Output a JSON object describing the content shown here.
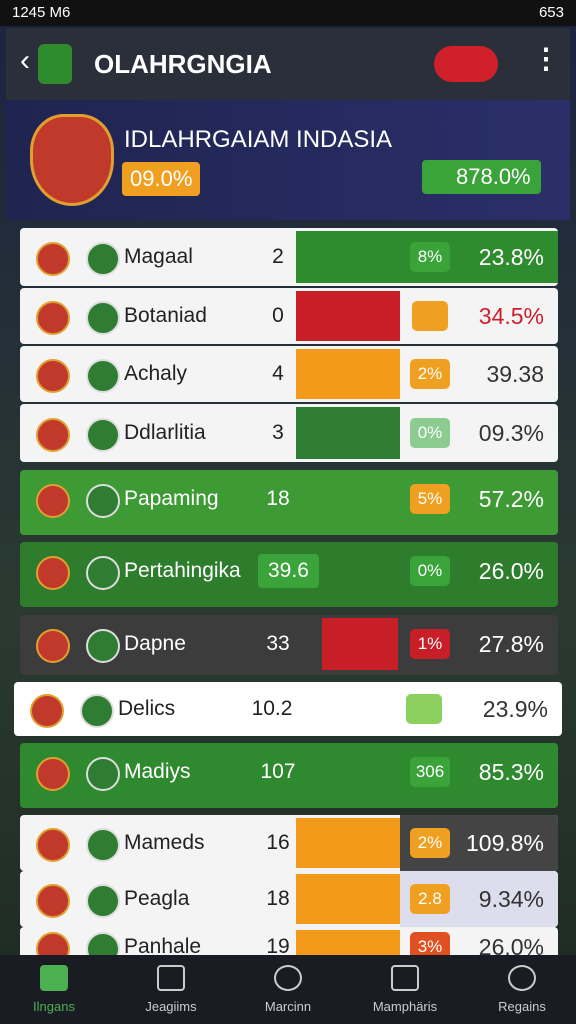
{
  "status_bar": {
    "time": "1245 M6",
    "battery": "653"
  },
  "header": {
    "title": "OLAHRGNGIA"
  },
  "hero": {
    "title": "IDLAHRGAIAM INDASIA",
    "badge_left": "09.0%",
    "badge_right": "878.0%"
  },
  "rows": [
    {
      "name": "Magaal",
      "value": "2",
      "badge": "8%",
      "percent": "23.8%"
    },
    {
      "name": "Botaniad",
      "value": "0",
      "percent": "34.5%"
    },
    {
      "name": "Achaly",
      "value": "4",
      "badge": "2%",
      "percent": "39.38"
    },
    {
      "name": "Ddlarlitia",
      "value": "3",
      "badge": "0%",
      "percent": "09.3%"
    },
    {
      "name": "Papaming",
      "value": "18",
      "badge": "5%",
      "percent": "57.2%"
    },
    {
      "name": "Pertahingika",
      "value": "39.6",
      "badge": "0%",
      "percent": "26.0%"
    },
    {
      "name": "Dapne",
      "value": "33",
      "badge": "1%",
      "percent": "27.8%"
    },
    {
      "name": "Delics",
      "value": "10.2",
      "percent": "23.9%"
    },
    {
      "name": "Madiys",
      "value": "107",
      "badge": "306",
      "percent": "85.3%"
    },
    {
      "name": "Mameds",
      "value": "16",
      "badge": "2%",
      "percent": "109.8%"
    },
    {
      "name": "Peagla",
      "value": "18",
      "badge": "2.8",
      "percent": "9.34%"
    },
    {
      "name": "Panhale",
      "value": "19",
      "badge": "3%",
      "percent": "26.0%"
    }
  ],
  "nav": [
    "Ilngans",
    "Jeagiims",
    "Marcinn",
    "Mamphäris",
    "Regains"
  ]
}
